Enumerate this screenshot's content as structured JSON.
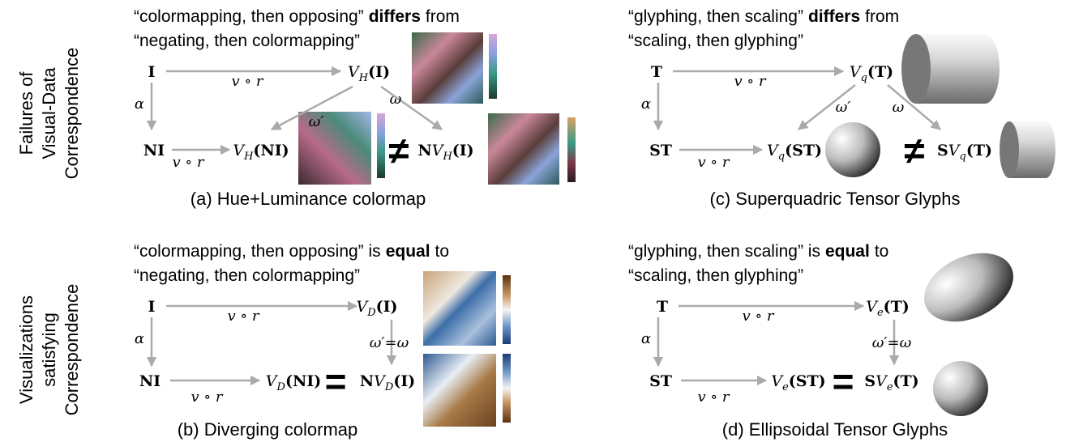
{
  "row_labels": [
    [
      "Failures of",
      "Visual-Data",
      "Correspondence"
    ],
    [
      "Visualizations",
      "satisfying",
      "Correspondence"
    ]
  ],
  "panels": [
    {
      "caption": "(a) Hue+Luminance colormap",
      "statement": {
        "line1": {
          "before": "“colormapping, then opposing”",
          "emphasis": "differs",
          "after": "from"
        },
        "line2": "“negating, then colormapping”"
      },
      "nodes": [
        {
          "pre": "I"
        },
        {
          "fn": "V",
          "sub": "H",
          "arg": "(I)"
        },
        {
          "pre": "NI"
        },
        {
          "fn": "V",
          "sub": "H",
          "arg": "(NI)"
        },
        {
          "pre": "N",
          "fn": "V",
          "sub": "H",
          "arg": "(I)"
        }
      ],
      "edge_labels": [
        "v ∘ r",
        "v ∘ r",
        "α",
        "ω′",
        "ω"
      ],
      "relation": "≠"
    },
    {
      "caption": "(b) Diverging colormap",
      "statement": {
        "line1": {
          "before": "“colormapping, then opposing” is",
          "emphasis": "equal",
          "after": "to"
        },
        "line2": "“negating, then colormapping”"
      },
      "nodes": [
        {
          "pre": "I"
        },
        {
          "fn": "V",
          "sub": "D",
          "arg": "(I)"
        },
        {
          "pre": "NI"
        },
        {
          "fn": "V",
          "sub": "D",
          "arg": "(NI)"
        },
        {
          "pre": "N",
          "fn": "V",
          "sub": "D",
          "arg": "(I)"
        }
      ],
      "edge_labels": [
        "v ∘ r",
        "v ∘ r",
        "α",
        "ω′=ω"
      ],
      "relation": "="
    },
    {
      "caption": "(c) Superquadric Tensor Glyphs",
      "statement": {
        "line1": {
          "before": "“glyphing, then scaling”",
          "emphasis": "differs",
          "after": "from"
        },
        "line2": "“scaling, then glyphing”"
      },
      "nodes": [
        {
          "pre": "T"
        },
        {
          "fn": "V",
          "sub": "q",
          "arg": "(T)"
        },
        {
          "pre": "ST"
        },
        {
          "fn": "V",
          "sub": "q",
          "arg": "(ST)"
        },
        {
          "pre": "S",
          "fn": "V",
          "sub": "q",
          "arg": "(T)"
        }
      ],
      "edge_labels": [
        "v ∘ r",
        "v ∘ r",
        "α",
        "ω′",
        "ω"
      ],
      "relation": "≠"
    },
    {
      "caption": "(d) Ellipsoidal Tensor Glyphs",
      "statement": {
        "line1": {
          "before": "“glyphing, then scaling” is",
          "emphasis": "equal",
          "after": "to"
        },
        "line2": "“scaling, then glyphing”"
      },
      "nodes": [
        {
          "pre": "T"
        },
        {
          "fn": "V",
          "sub": "e",
          "arg": "(T)"
        },
        {
          "pre": "ST"
        },
        {
          "fn": "V",
          "sub": "e",
          "arg": "(ST)"
        },
        {
          "pre": "S",
          "fn": "V",
          "sub": "e",
          "arg": "(T)"
        }
      ],
      "edge_labels": [
        "v ∘ r",
        "v ∘ r",
        "α",
        "ω′=ω"
      ],
      "relation": "="
    }
  ]
}
